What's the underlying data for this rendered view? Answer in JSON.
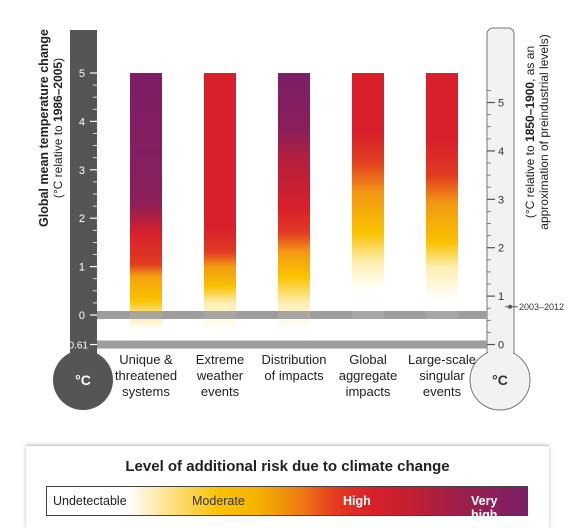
{
  "chart_data": {
    "type": "bar",
    "title": "",
    "left_axis": {
      "label": "Global mean temperature change",
      "sublabel_prefix": "(°C relative to ",
      "sublabel_bold": "1986–2005",
      "sublabel_suffix": ")",
      "ticks": [
        "0",
        "1",
        "2",
        "3",
        "4",
        "5"
      ],
      "extra_tick": "-0.61",
      "unit_bulb": "°C",
      "ylim": [
        -0.61,
        5
      ]
    },
    "right_axis": {
      "label_prefix": "(°C relative to ",
      "label_bold": "1850–1900",
      "label_suffix": ", as an",
      "label_line2": "approximation of preindustrial levels)",
      "ticks": [
        "0",
        "1",
        "2",
        "3",
        "4",
        "5"
      ],
      "offset_from_left": 0.61,
      "unit_bulb": "°C"
    },
    "reference_marker": {
      "label": "2003–2012",
      "value_left_axis": 0.17
    },
    "reference_bands_left_axis": [
      0,
      -0.61
    ],
    "categories": [
      [
        "Unique &",
        "threatened",
        "systems"
      ],
      [
        "Extreme",
        "weather",
        "events"
      ],
      [
        "Distribution",
        "of impacts"
      ],
      [
        "Global",
        "aggregate",
        "impacts"
      ],
      [
        "Large-scale",
        "singular",
        "events"
      ]
    ],
    "bars_range_left_axis": [
      -0.3,
      5
    ],
    "risk_color_stops": [
      {
        "name": "Undetectable",
        "color": "#ffffff"
      },
      {
        "name": "Moderate",
        "color": "#f9c200"
      },
      {
        "name": "High",
        "color": "#d7202a"
      },
      {
        "name": "Very high",
        "color": "#7b1f67"
      }
    ],
    "series": [
      {
        "stops": [
          [
            -0.3,
            "#ffffff"
          ],
          [
            -0.05,
            "#fdeeb0"
          ],
          [
            0.3,
            "#f9c200"
          ],
          [
            0.8,
            "#f6a10e"
          ],
          [
            1.05,
            "#e13a22"
          ],
          [
            1.7,
            "#d7202a"
          ],
          [
            2.0,
            "#b11f40"
          ],
          [
            2.35,
            "#8a1f5a"
          ],
          [
            5.0,
            "#7b1f67"
          ]
        ]
      },
      {
        "stops": [
          [
            -0.3,
            "#ffffff"
          ],
          [
            0.25,
            "#fdeeb0"
          ],
          [
            0.6,
            "#f9c200"
          ],
          [
            1.0,
            "#f29a12"
          ],
          [
            1.3,
            "#e13a22"
          ],
          [
            1.8,
            "#d7202a"
          ],
          [
            5.0,
            "#d7202a"
          ]
        ]
      },
      {
        "stops": [
          [
            -0.3,
            "#ffffff"
          ],
          [
            0.25,
            "#fdeeb0"
          ],
          [
            0.8,
            "#f9c200"
          ],
          [
            1.3,
            "#f29a12"
          ],
          [
            1.7,
            "#e13a22"
          ],
          [
            2.2,
            "#d7202a"
          ],
          [
            3.3,
            "#b11f40"
          ],
          [
            3.8,
            "#8a1f5a"
          ],
          [
            5.0,
            "#7b1f67"
          ]
        ]
      },
      {
        "stops": [
          [
            -0.3,
            "#ffffff"
          ],
          [
            0.5,
            "#ffffff"
          ],
          [
            1.1,
            "#fdeeb0"
          ],
          [
            1.7,
            "#f9c200"
          ],
          [
            2.5,
            "#f29a12"
          ],
          [
            3.2,
            "#e13a22"
          ],
          [
            3.8,
            "#d7202a"
          ],
          [
            5.0,
            "#d7202a"
          ]
        ]
      },
      {
        "stops": [
          [
            -0.3,
            "#ffffff"
          ],
          [
            0.3,
            "#ffffff"
          ],
          [
            1.0,
            "#fdeeb0"
          ],
          [
            1.5,
            "#f9c200"
          ],
          [
            2.3,
            "#f29a12"
          ],
          [
            2.9,
            "#e13a22"
          ],
          [
            3.6,
            "#d7202a"
          ],
          [
            5.0,
            "#d7202a"
          ]
        ]
      }
    ]
  },
  "legend": {
    "title": "Level of additional risk due to climate change",
    "labels": {
      "undetectable": "Undetectable",
      "moderate": "Moderate",
      "high": "High",
      "very_high": "Very high"
    }
  }
}
